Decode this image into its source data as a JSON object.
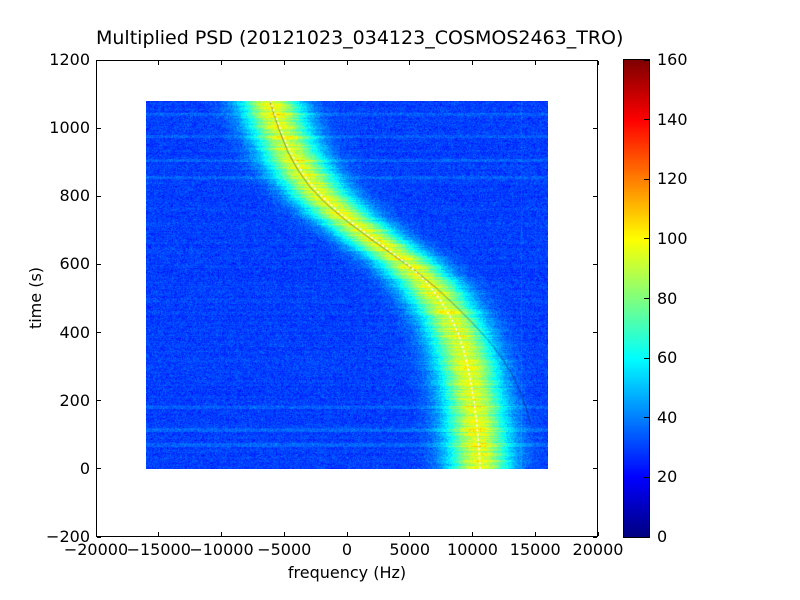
{
  "figure": {
    "title": "Multiplied PSD (20121023_034123_COSMOS2463_TRO)",
    "xlabel": "frequency (Hz)",
    "ylabel": "time (s)"
  },
  "axes": {
    "xlim": [
      -20000,
      20000
    ],
    "ylim": [
      -200,
      1200
    ],
    "xticks": [
      {
        "value": -20000,
        "label": "−20000"
      },
      {
        "value": -15000,
        "label": "−15000"
      },
      {
        "value": -10000,
        "label": "−10000"
      },
      {
        "value": -5000,
        "label": "−5000"
      },
      {
        "value": 0,
        "label": "0"
      },
      {
        "value": 5000,
        "label": "5000"
      },
      {
        "value": 10000,
        "label": "10000"
      },
      {
        "value": 15000,
        "label": "15000"
      },
      {
        "value": 20000,
        "label": "20000"
      }
    ],
    "yticks": [
      {
        "value": -200,
        "label": "−200"
      },
      {
        "value": 0,
        "label": "0"
      },
      {
        "value": 200,
        "label": "200"
      },
      {
        "value": 400,
        "label": "400"
      },
      {
        "value": 600,
        "label": "600"
      },
      {
        "value": 800,
        "label": "800"
      },
      {
        "value": 1000,
        "label": "1000"
      },
      {
        "value": 1200,
        "label": "1200"
      }
    ]
  },
  "colorbar": {
    "min": 0,
    "max": 160,
    "colormap": "jet",
    "ticks": [
      {
        "value": 0,
        "label": "0"
      },
      {
        "value": 20,
        "label": "20"
      },
      {
        "value": 40,
        "label": "40"
      },
      {
        "value": 60,
        "label": "60"
      },
      {
        "value": 80,
        "label": "80"
      },
      {
        "value": 100,
        "label": "100"
      },
      {
        "value": 120,
        "label": "120"
      },
      {
        "value": 140,
        "label": "140"
      },
      {
        "value": 160,
        "label": "160"
      }
    ]
  },
  "chart_data": {
    "type": "heatmap",
    "title": "Multiplied PSD (20121023_034123_COSMOS2463_TRO)",
    "xlabel": "frequency (Hz)",
    "ylabel": "time (s)",
    "xlim": [
      -20000,
      20000
    ],
    "ylim": [
      -200,
      1200
    ],
    "extent": {
      "fmin": -16000,
      "fmax": 16000,
      "tmin": 0,
      "tmax": 1080
    },
    "colormap": "jet",
    "vmin": 0,
    "vmax": 160,
    "background_level": 30,
    "peak_level": 95,
    "band_sigma_hz": 1750,
    "doppler_curve": {
      "t": [
        0,
        50,
        100,
        150,
        200,
        250,
        300,
        350,
        400,
        450,
        500,
        550,
        600,
        650,
        700,
        750,
        800,
        850,
        900,
        950,
        1000,
        1050,
        1080
      ],
      "f": [
        10600,
        10520,
        10420,
        10280,
        10100,
        9880,
        9620,
        9280,
        8830,
        8180,
        7350,
        6300,
        4850,
        3050,
        1200,
        -550,
        -1990,
        -3180,
        -4060,
        -4760,
        -5330,
        -5820,
        -6130
      ]
    },
    "fit_curve": {
      "t": [
        130,
        180,
        230,
        280,
        330,
        380,
        430,
        480,
        530,
        580,
        630,
        680,
        730,
        780,
        830,
        880,
        930,
        1000,
        1080
      ],
      "f": [
        14600,
        14250,
        13750,
        13100,
        12250,
        11200,
        9950,
        8600,
        7150,
        5500,
        3600,
        1700,
        -100,
        -1700,
        -3000,
        -3950,
        -4700,
        -5450,
        -6150
      ]
    },
    "rfi_times": [
      70,
      115,
      180,
      855,
      905,
      975,
      1040
    ],
    "vertical_streak_hz": 13900
  }
}
